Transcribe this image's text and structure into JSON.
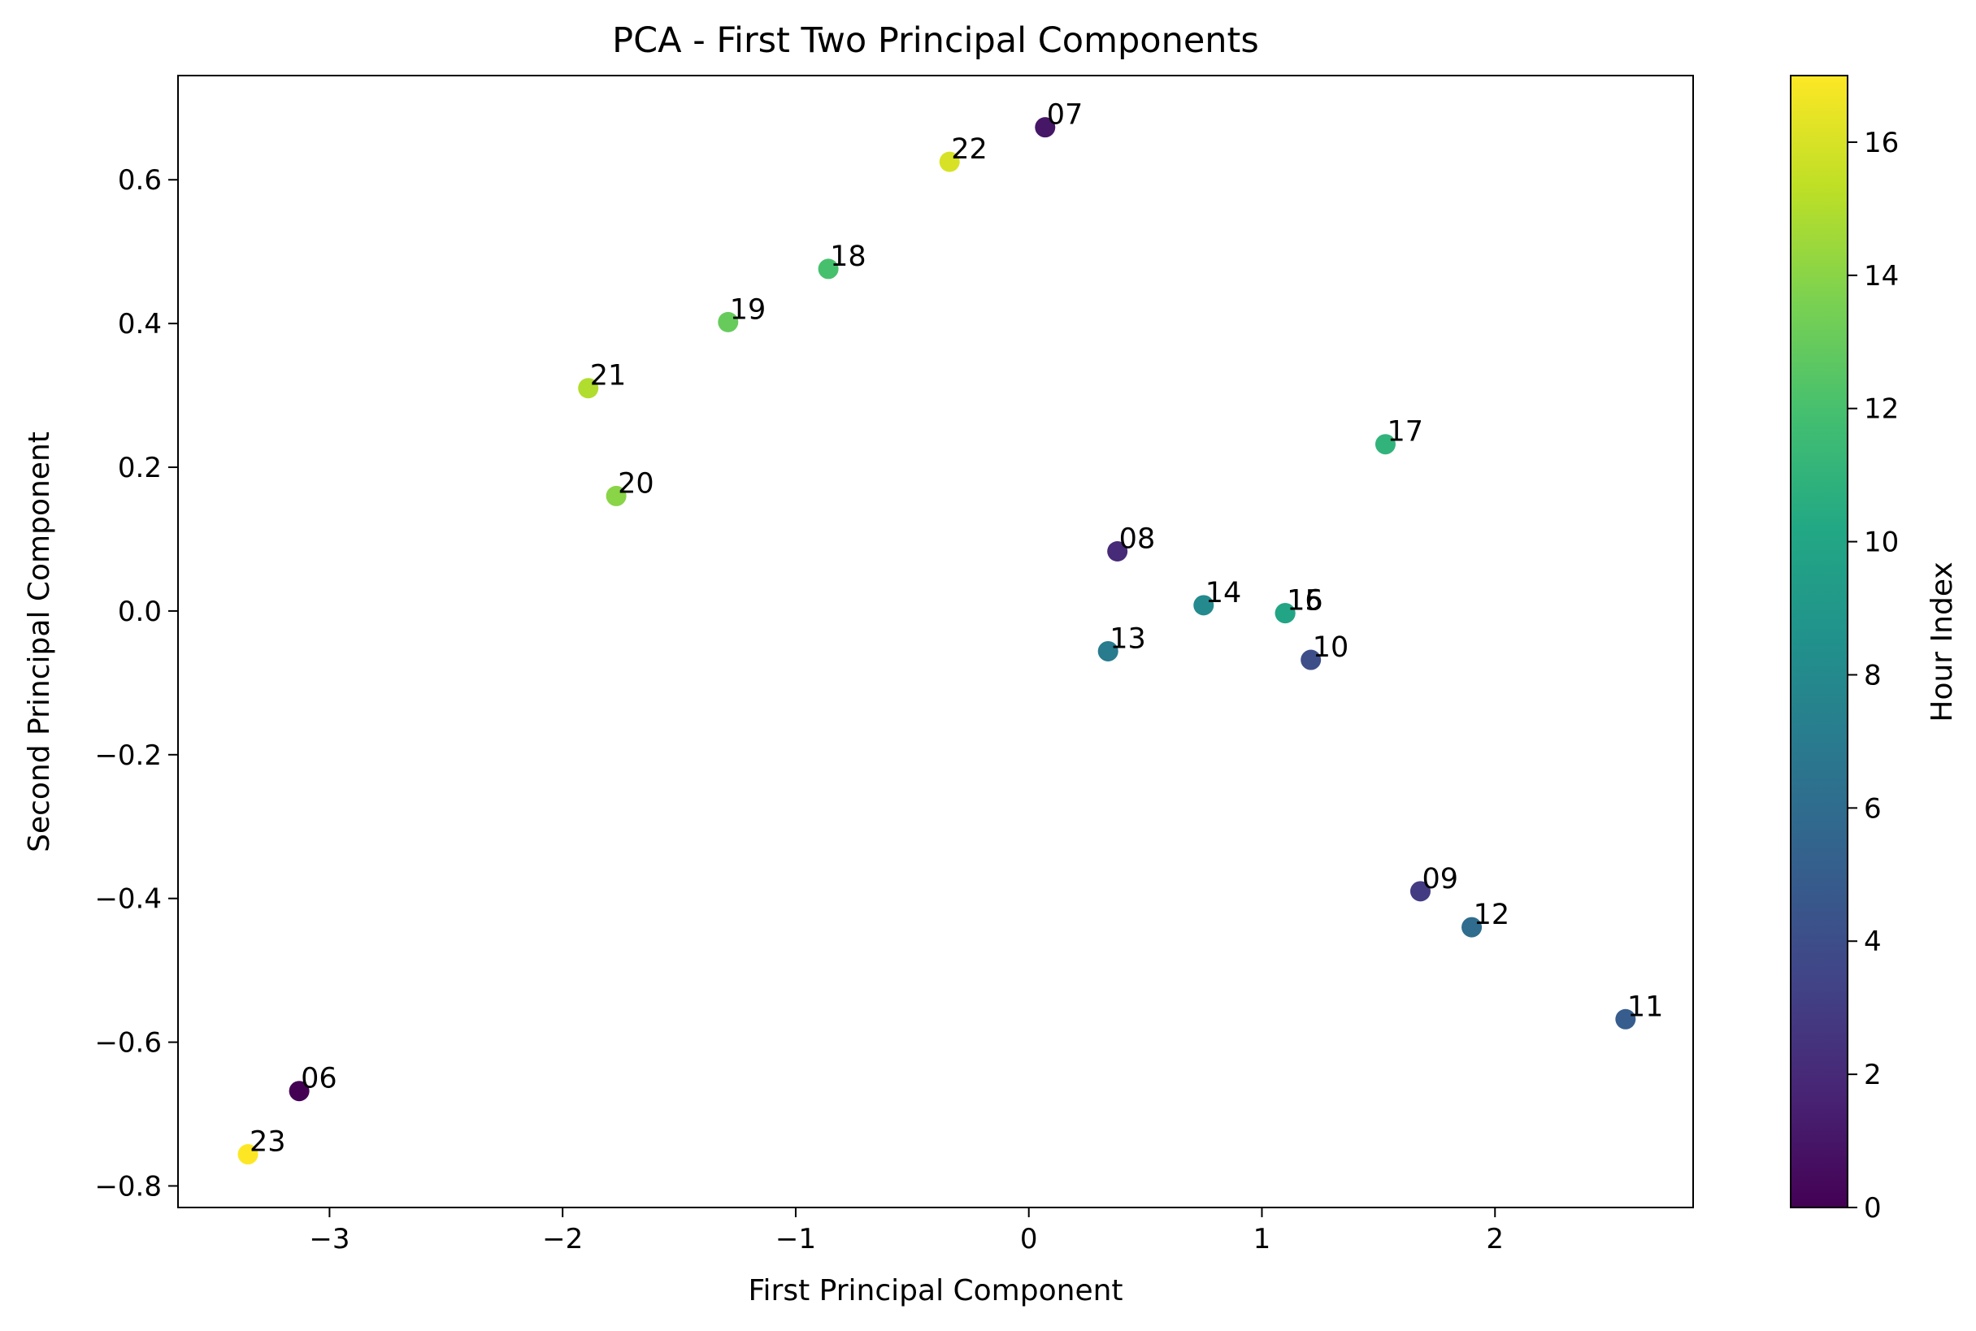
{
  "chart_data": {
    "type": "scatter",
    "title": "PCA - First Two Principal Components",
    "xlabel": "First Principal Component",
    "ylabel": "Second Principal Component",
    "xlim": [
      -3.65,
      2.85
    ],
    "ylim": [
      -0.83,
      0.745
    ],
    "x_ticks": [
      -3,
      -2,
      -1,
      0,
      1,
      2
    ],
    "y_ticks": [
      -0.8,
      -0.6,
      -0.4,
      -0.2,
      0.0,
      0.2,
      0.4,
      0.6
    ],
    "grid": false,
    "colormap": "viridis",
    "colorbar": {
      "label": "Hour Index",
      "range": [
        0,
        17
      ],
      "ticks": [
        0,
        2,
        4,
        6,
        8,
        10,
        12,
        14,
        16
      ]
    },
    "points": [
      {
        "label": "06",
        "x": -3.13,
        "y": -0.668,
        "c": 0
      },
      {
        "label": "07",
        "x": 0.07,
        "y": 0.673,
        "c": 1
      },
      {
        "label": "08",
        "x": 0.38,
        "y": 0.083,
        "c": 2
      },
      {
        "label": "09",
        "x": 1.68,
        "y": -0.39,
        "c": 3
      },
      {
        "label": "10",
        "x": 1.21,
        "y": -0.068,
        "c": 4
      },
      {
        "label": "11",
        "x": 2.56,
        "y": -0.568,
        "c": 5
      },
      {
        "label": "12",
        "x": 1.9,
        "y": -0.44,
        "c": 6
      },
      {
        "label": "13",
        "x": 0.34,
        "y": -0.056,
        "c": 7
      },
      {
        "label": "14",
        "x": 0.75,
        "y": 0.008,
        "c": 8
      },
      {
        "label": "15",
        "x": 1.1,
        "y": -0.003,
        "c": 9
      },
      {
        "label": "16",
        "x": 1.1,
        "y": -0.003,
        "c": 10
      },
      {
        "label": "17",
        "x": 1.53,
        "y": 0.232,
        "c": 11
      },
      {
        "label": "18",
        "x": -0.86,
        "y": 0.476,
        "c": 12
      },
      {
        "label": "19",
        "x": -1.29,
        "y": 0.402,
        "c": 13
      },
      {
        "label": "20",
        "x": -1.77,
        "y": 0.16,
        "c": 14
      },
      {
        "label": "21",
        "x": -1.89,
        "y": 0.31,
        "c": 15
      },
      {
        "label": "22",
        "x": -0.34,
        "y": 0.625,
        "c": 16
      },
      {
        "label": "23",
        "x": -3.35,
        "y": -0.756,
        "c": 17
      }
    ]
  }
}
